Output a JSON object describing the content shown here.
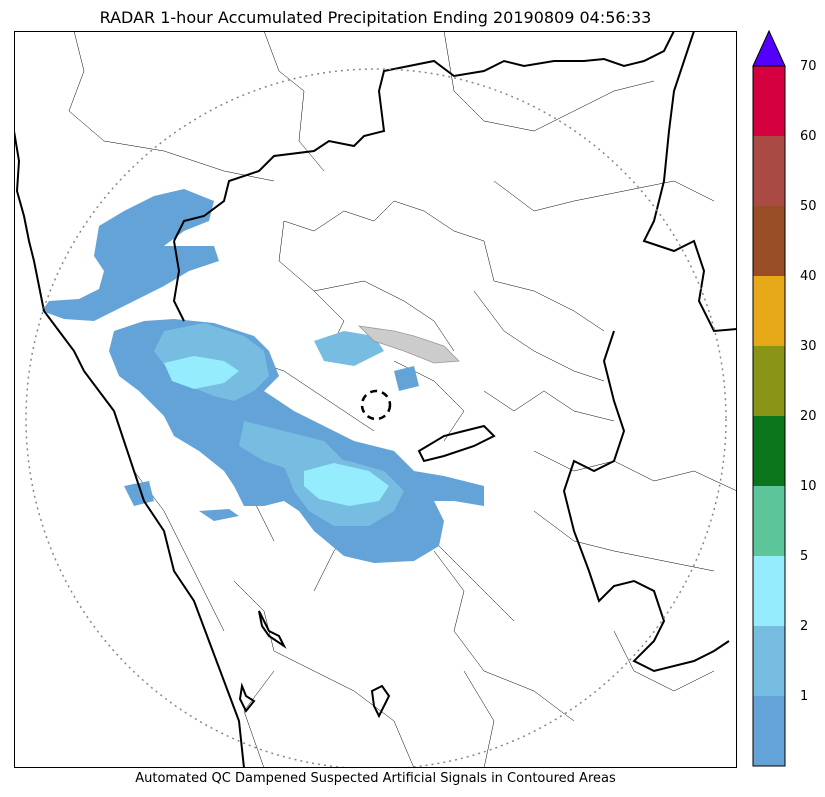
{
  "title": "RADAR 1-hour Accumulated Precipitation Ending 20190809 04:56:33",
  "footer": "Automated QC Dampened Suspected Artificial Signals in Contoured Areas",
  "colorbar": {
    "levels": [
      {
        "label": "",
        "color": "#63a3d8"
      },
      {
        "label": "1",
        "color": "#77bde2"
      },
      {
        "label": "2",
        "color": "#94ecfd"
      },
      {
        "label": "5",
        "color": "#5dc59a"
      },
      {
        "label": "10",
        "color": "#0b751c"
      },
      {
        "label": "20",
        "color": "#8a9416"
      },
      {
        "label": "30",
        "color": "#e7a818"
      },
      {
        "label": "40",
        "color": "#984d27"
      },
      {
        "label": "50",
        "color": "#a94a45"
      },
      {
        "label": "60",
        "color": "#d4003f"
      },
      {
        "label": "70",
        "color": "#5400ff"
      }
    ],
    "extend_color": "#5400ff"
  },
  "colors": {
    "precip_light": "#63a3d8",
    "precip_mid": "#77bde2",
    "precip_heavy": "#94ecfd",
    "range_ring": "#888888",
    "boundary": "#000000",
    "qc_area": "#bbbbbb"
  }
}
